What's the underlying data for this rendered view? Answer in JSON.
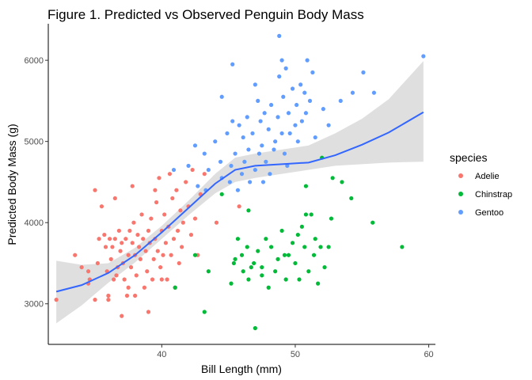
{
  "chart_data": {
    "type": "scatter",
    "title": "Figure 1. Predicted vs Observed Penguin Body Mass",
    "xlabel": "Bill Length (mm)",
    "ylabel": "Predicted Body Mass (g)",
    "xlim": [
      31.5,
      60.5
    ],
    "ylim": [
      2500,
      6450
    ],
    "x_ticks": [
      40,
      50,
      60
    ],
    "y_ticks": [
      3000,
      4000,
      5000,
      6000
    ],
    "grid": false,
    "legend": {
      "title": "species",
      "position": "right"
    },
    "series": [
      {
        "name": "Adelie",
        "color": "#F8766D",
        "points": [
          [
            32.1,
            3050
          ],
          [
            33.5,
            3600
          ],
          [
            34.0,
            3450
          ],
          [
            34.5,
            3400
          ],
          [
            34.5,
            3250
          ],
          [
            34.6,
            3300
          ],
          [
            35.0,
            4400
          ],
          [
            35.2,
            3500
          ],
          [
            35.3,
            3800
          ],
          [
            35.5,
            4200
          ],
          [
            35.7,
            3850
          ],
          [
            35.8,
            3700
          ],
          [
            35.9,
            3400
          ],
          [
            36.0,
            3100
          ],
          [
            36.1,
            3800
          ],
          [
            36.2,
            3550
          ],
          [
            36.3,
            3700
          ],
          [
            36.4,
            3300
          ],
          [
            36.5,
            3800
          ],
          [
            36.6,
            3350
          ],
          [
            36.7,
            3450
          ],
          [
            36.8,
            3900
          ],
          [
            36.9,
            3650
          ],
          [
            37.0,
            3750
          ],
          [
            37.1,
            3500
          ],
          [
            37.2,
            3300
          ],
          [
            37.3,
            3800
          ],
          [
            37.4,
            3100
          ],
          [
            37.5,
            3600
          ],
          [
            37.6,
            3900
          ],
          [
            37.7,
            3450
          ],
          [
            37.8,
            3750
          ],
          [
            37.9,
            4000
          ],
          [
            38.0,
            3600
          ],
          [
            38.1,
            3350
          ],
          [
            38.2,
            3850
          ],
          [
            38.3,
            3700
          ],
          [
            38.4,
            3550
          ],
          [
            38.5,
            4100
          ],
          [
            38.6,
            3800
          ],
          [
            38.7,
            3200
          ],
          [
            38.8,
            3650
          ],
          [
            38.9,
            3400
          ],
          [
            39.0,
            3900
          ],
          [
            39.1,
            3750
          ],
          [
            39.2,
            4050
          ],
          [
            39.3,
            3300
          ],
          [
            39.4,
            3550
          ],
          [
            39.5,
            3800
          ],
          [
            39.6,
            4250
          ],
          [
            39.7,
            3650
          ],
          [
            39.8,
            4550
          ],
          [
            39.9,
            3450
          ],
          [
            40.0,
            3900
          ],
          [
            40.1,
            3600
          ],
          [
            40.2,
            4100
          ],
          [
            40.3,
            3750
          ],
          [
            40.4,
            3300
          ],
          [
            40.5,
            3950
          ],
          [
            40.6,
            4600
          ],
          [
            40.7,
            3600
          ],
          [
            40.8,
            4300
          ],
          [
            40.9,
            3800
          ],
          [
            41.0,
            3200
          ],
          [
            41.1,
            4400
          ],
          [
            41.2,
            3900
          ],
          [
            41.3,
            3500
          ],
          [
            41.4,
            4150
          ],
          [
            41.5,
            3700
          ],
          [
            41.6,
            4000
          ],
          [
            41.8,
            4500
          ],
          [
            42.0,
            4200
          ],
          [
            42.2,
            3850
          ],
          [
            42.3,
            4650
          ],
          [
            42.5,
            4050
          ],
          [
            42.7,
            3600
          ],
          [
            42.9,
            4350
          ],
          [
            43.2,
            4600
          ],
          [
            44.1,
            4000
          ],
          [
            45.8,
            4200
          ],
          [
            35.0,
            3050
          ],
          [
            36.0,
            3050
          ],
          [
            37.0,
            2850
          ],
          [
            37.5,
            3200
          ],
          [
            38.0,
            3100
          ],
          [
            39.0,
            2900
          ],
          [
            40.0,
            3300
          ],
          [
            36.5,
            4300
          ],
          [
            37.8,
            4450
          ],
          [
            39.5,
            4400
          ]
        ]
      },
      {
        "name": "Chinstrap",
        "color": "#00BA38",
        "points": [
          [
            41.0,
            3200
          ],
          [
            42.5,
            3600
          ],
          [
            43.2,
            2900
          ],
          [
            43.5,
            3400
          ],
          [
            45.2,
            3250
          ],
          [
            45.4,
            3500
          ],
          [
            45.5,
            3550
          ],
          [
            45.7,
            3800
          ],
          [
            46.0,
            3600
          ],
          [
            46.1,
            3400
          ],
          [
            46.4,
            3700
          ],
          [
            46.5,
            3300
          ],
          [
            46.7,
            3450
          ],
          [
            46.9,
            3500
          ],
          [
            47.0,
            2700
          ],
          [
            47.2,
            3650
          ],
          [
            47.5,
            3350
          ],
          [
            47.8,
            3800
          ],
          [
            48.0,
            3200
          ],
          [
            48.2,
            3700
          ],
          [
            48.5,
            3400
          ],
          [
            48.7,
            3550
          ],
          [
            49.0,
            3900
          ],
          [
            49.3,
            3300
          ],
          [
            49.5,
            3600
          ],
          [
            49.8,
            3750
          ],
          [
            50.0,
            3500
          ],
          [
            50.2,
            3850
          ],
          [
            50.3,
            3300
          ],
          [
            50.5,
            3950
          ],
          [
            50.7,
            3700
          ],
          [
            50.8,
            4100
          ],
          [
            51.0,
            3400
          ],
          [
            51.2,
            4100
          ],
          [
            51.4,
            3600
          ],
          [
            51.5,
            3800
          ],
          [
            51.7,
            3250
          ],
          [
            51.9,
            3700
          ],
          [
            52.0,
            4800
          ],
          [
            52.2,
            3450
          ],
          [
            52.5,
            3700
          ],
          [
            52.7,
            4050
          ],
          [
            52.8,
            4550
          ],
          [
            53.5,
            4500
          ],
          [
            54.2,
            4300
          ],
          [
            55.8,
            4000
          ],
          [
            58.0,
            3700
          ],
          [
            46.5,
            4150
          ],
          [
            50.8,
            4450
          ],
          [
            44.5,
            4350
          ],
          [
            47.5,
            3450
          ],
          [
            49.2,
            3600
          ]
        ]
      },
      {
        "name": "Gentoo",
        "color": "#619CFF",
        "points": [
          [
            40.9,
            4650
          ],
          [
            42.0,
            4700
          ],
          [
            42.5,
            4950
          ],
          [
            42.7,
            4450
          ],
          [
            43.2,
            4850
          ],
          [
            43.3,
            4400
          ],
          [
            43.5,
            4650
          ],
          [
            44.0,
            5000
          ],
          [
            44.4,
            4750
          ],
          [
            44.5,
            4550
          ],
          [
            44.9,
            5100
          ],
          [
            45.1,
            4500
          ],
          [
            45.2,
            4700
          ],
          [
            45.3,
            5250
          ],
          [
            45.5,
            4850
          ],
          [
            45.7,
            4400
          ],
          [
            45.8,
            5200
          ],
          [
            46.0,
            4600
          ],
          [
            46.1,
            5050
          ],
          [
            46.2,
            4750
          ],
          [
            46.4,
            5300
          ],
          [
            46.5,
            4900
          ],
          [
            46.6,
            4500
          ],
          [
            46.8,
            5100
          ],
          [
            47.0,
            4650
          ],
          [
            47.2,
            5500
          ],
          [
            47.3,
            4850
          ],
          [
            47.4,
            5250
          ],
          [
            47.5,
            4950
          ],
          [
            47.6,
            4500
          ],
          [
            47.7,
            5350
          ],
          [
            47.8,
            4750
          ],
          [
            48.0,
            5150
          ],
          [
            48.1,
            4600
          ],
          [
            48.2,
            5450
          ],
          [
            48.4,
            4900
          ],
          [
            48.5,
            5000
          ],
          [
            48.7,
            5300
          ],
          [
            48.8,
            5800
          ],
          [
            49.0,
            5100
          ],
          [
            49.1,
            5550
          ],
          [
            49.2,
            4850
          ],
          [
            49.3,
            5900
          ],
          [
            49.5,
            5350
          ],
          [
            49.6,
            5100
          ],
          [
            49.8,
            5650
          ],
          [
            50.0,
            5200
          ],
          [
            50.1,
            5450
          ],
          [
            50.2,
            5000
          ],
          [
            50.4,
            5700
          ],
          [
            50.5,
            5250
          ],
          [
            50.7,
            5600
          ],
          [
            50.8,
            5350
          ],
          [
            51.1,
            5500
          ],
          [
            51.3,
            5850
          ],
          [
            51.5,
            5050
          ],
          [
            52.1,
            5400
          ],
          [
            52.5,
            5200
          ],
          [
            53.4,
            5500
          ],
          [
            54.3,
            5600
          ],
          [
            55.1,
            5850
          ],
          [
            55.9,
            5600
          ],
          [
            59.6,
            6050
          ],
          [
            49.0,
            6000
          ],
          [
            45.3,
            5950
          ],
          [
            48.8,
            6300
          ],
          [
            50.9,
            6000
          ],
          [
            44.5,
            5550
          ],
          [
            47.0,
            5700
          ],
          [
            49.4,
            4700
          ]
        ]
      }
    ],
    "smooth": {
      "line": [
        [
          32.1,
          3150
        ],
        [
          34.0,
          3230
        ],
        [
          36.0,
          3380
        ],
        [
          38.0,
          3600
        ],
        [
          40.0,
          3880
        ],
        [
          42.0,
          4180
        ],
        [
          44.0,
          4480
        ],
        [
          45.5,
          4650
        ],
        [
          47.0,
          4700
        ],
        [
          49.0,
          4720
        ],
        [
          51.0,
          4740
        ],
        [
          53.0,
          4830
        ],
        [
          55.0,
          4960
        ],
        [
          57.0,
          5110
        ],
        [
          59.6,
          5360
        ]
      ],
      "upper": [
        [
          32.1,
          3530
        ],
        [
          34.0,
          3480
        ],
        [
          36.0,
          3500
        ],
        [
          38.0,
          3690
        ],
        [
          40.0,
          3960
        ],
        [
          42.0,
          4270
        ],
        [
          44.0,
          4600
        ],
        [
          45.5,
          4800
        ],
        [
          47.0,
          4850
        ],
        [
          49.0,
          4900
        ],
        [
          51.0,
          4950
        ],
        [
          53.0,
          5100
        ],
        [
          55.0,
          5280
        ],
        [
          57.0,
          5520
        ],
        [
          59.6,
          5990
        ]
      ],
      "lower": [
        [
          32.1,
          2760
        ],
        [
          34.0,
          2980
        ],
        [
          36.0,
          3260
        ],
        [
          38.0,
          3510
        ],
        [
          40.0,
          3800
        ],
        [
          42.0,
          4090
        ],
        [
          44.0,
          4360
        ],
        [
          45.5,
          4500
        ],
        [
          47.0,
          4550
        ],
        [
          49.0,
          4600
        ],
        [
          51.0,
          4650
        ],
        [
          53.0,
          4700
        ],
        [
          55.0,
          4720
        ],
        [
          57.0,
          4740
        ],
        [
          59.6,
          4750
        ]
      ],
      "line_color": "#3366FF",
      "band_color": "#d9d9d9"
    }
  }
}
